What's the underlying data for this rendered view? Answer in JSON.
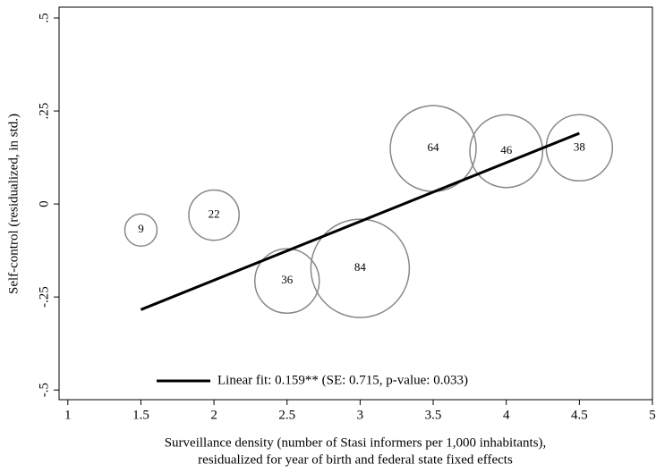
{
  "chart_data": {
    "type": "bubble",
    "x": [
      1.5,
      2,
      2.5,
      3,
      3.5,
      4,
      4.5
    ],
    "values": [
      -0.07,
      -0.03,
      -0.207,
      -0.173,
      0.149,
      0.142,
      0.151
    ],
    "sizes": [
      9,
      22,
      36,
      84,
      64,
      46,
      38
    ],
    "color": "#888888",
    "fit": {
      "name": "Linear fit: 0.159** (SE: 0.715, p-value: 0.033)",
      "x": [
        1.5,
        4.5
      ],
      "y": [
        -0.284,
        0.19
      ],
      "color": "#000000"
    },
    "xlim": [
      0.94,
      5.0
    ],
    "ylim": [
      -0.526,
      0.529
    ],
    "xticks": [
      1,
      1.5,
      2,
      2.5,
      3,
      3.5,
      4,
      4.5,
      5
    ],
    "yticks": [
      {
        "value": -0.5,
        "label": "-.5"
      },
      {
        "value": -0.25,
        "label": "-.25"
      },
      0,
      {
        "value": 0.25,
        "label": ".25"
      },
      {
        "value": 0.5,
        "label": ".5"
      }
    ],
    "xlabel": [
      "Surveillance density (number of Stasi informers per 1,000 inhabitants),",
      "residualized for year of birth and federal state fixed effects"
    ],
    "ylabel": "Self-control (residualized, in std.)"
  }
}
